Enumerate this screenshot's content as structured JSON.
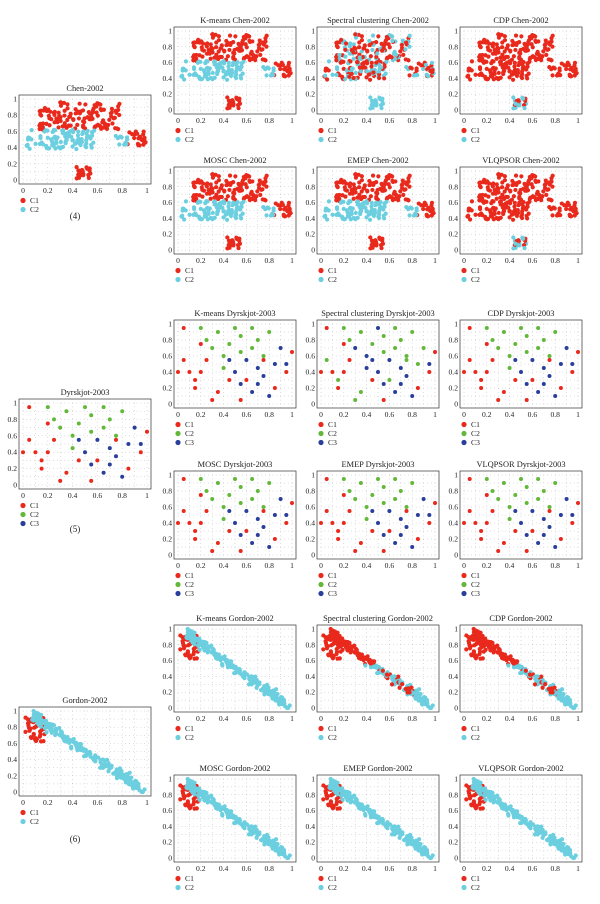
{
  "colors": {
    "C1": "#e8291c",
    "C2": "#6ccfe0",
    "C3": "#2a3f9c",
    "C2_green": "#63b83a"
  },
  "ticks": [
    "0",
    "0.2",
    "0.4",
    "0.6",
    "0.8",
    "1"
  ],
  "captions": [
    "(4)",
    "(5)",
    "(6)"
  ],
  "chart_data": [
    {
      "id": "chen-orig",
      "type": "scatter",
      "title": "Chen-2002",
      "dataset": "chen",
      "mode": "truth",
      "legend": [
        "C1",
        "C2"
      ],
      "xlim": [
        0,
        1
      ],
      "ylim": [
        0,
        1
      ]
    },
    {
      "id": "chen-kmeans",
      "type": "scatter",
      "title": "K-means Chen-2002",
      "dataset": "chen",
      "mode": "truth",
      "legend": [
        "C1",
        "C2"
      ],
      "xlim": [
        0,
        1
      ],
      "ylim": [
        0,
        1
      ]
    },
    {
      "id": "chen-spectral",
      "type": "scatter",
      "title": "Spectral clustering Chen-2002",
      "dataset": "chen",
      "mode": "mixed",
      "legend": [
        "C1",
        "C2"
      ],
      "xlim": [
        0,
        1
      ],
      "ylim": [
        0,
        1
      ]
    },
    {
      "id": "chen-cdp",
      "type": "scatter",
      "title": "CDP Chen-2002",
      "dataset": "chen",
      "mode": "allc1",
      "legend": [
        "C1",
        "C2"
      ],
      "xlim": [
        0,
        1
      ],
      "ylim": [
        0,
        1
      ]
    },
    {
      "id": "chen-mosc",
      "type": "scatter",
      "title": "MOSC Chen-2002",
      "dataset": "chen",
      "mode": "truth",
      "legend": [
        "C1",
        "C2"
      ],
      "xlim": [
        0,
        1
      ],
      "ylim": [
        0,
        1
      ]
    },
    {
      "id": "chen-emep",
      "type": "scatter",
      "title": "EMEP Chen-2002",
      "dataset": "chen",
      "mode": "truth",
      "legend": [
        "C1",
        "C2"
      ],
      "xlim": [
        0,
        1
      ],
      "ylim": [
        0,
        1
      ]
    },
    {
      "id": "chen-vlqpsor",
      "type": "scatter",
      "title": "VLQPSOR Chen-2002",
      "dataset": "chen",
      "mode": "allc1",
      "legend": [
        "C1",
        "C2"
      ],
      "xlim": [
        0,
        1
      ],
      "ylim": [
        0,
        1
      ]
    },
    {
      "id": "dyr-orig",
      "type": "scatter",
      "title": "Dyrskjot-2003",
      "dataset": "dyr",
      "mode": "truth",
      "legend": [
        "C1",
        "C2",
        "C3"
      ],
      "xlim": [
        0,
        1
      ],
      "ylim": [
        0,
        1
      ]
    },
    {
      "id": "dyr-kmeans",
      "type": "scatter",
      "title": "K-means Dyrskjot-2003",
      "dataset": "dyr",
      "mode": "truth",
      "legend": [
        "C1",
        "C2",
        "C3"
      ],
      "xlim": [
        0,
        1
      ],
      "ylim": [
        0,
        1
      ]
    },
    {
      "id": "dyr-spectral",
      "type": "scatter",
      "title": "Spectral clustering Dyrskjot-2003",
      "dataset": "dyr",
      "mode": "mixed",
      "legend": [
        "C1",
        "C2",
        "C3"
      ],
      "xlim": [
        0,
        1
      ],
      "ylim": [
        0,
        1
      ]
    },
    {
      "id": "dyr-cdp",
      "type": "scatter",
      "title": "CDP Dyrskjot-2003",
      "dataset": "dyr",
      "mode": "truth",
      "legend": [
        "C1",
        "C2",
        "C3"
      ],
      "xlim": [
        0,
        1
      ],
      "ylim": [
        0,
        1
      ]
    },
    {
      "id": "dyr-mosc",
      "type": "scatter",
      "title": "MOSC Dyrskjot-2003",
      "dataset": "dyr",
      "mode": "truth",
      "legend": [
        "C1",
        "C2",
        "C3"
      ],
      "xlim": [
        0,
        1
      ],
      "ylim": [
        0,
        1
      ]
    },
    {
      "id": "dyr-emep",
      "type": "scatter",
      "title": "EMEP Dyrskjot-2003",
      "dataset": "dyr",
      "mode": "truth",
      "legend": [
        "C1",
        "C2",
        "C3"
      ],
      "xlim": [
        0,
        1
      ],
      "ylim": [
        0,
        1
      ]
    },
    {
      "id": "dyr-vlqpsor",
      "type": "scatter",
      "title": "VLQPSOR Dyrskjot-2003",
      "dataset": "dyr",
      "mode": "truth",
      "legend": [
        "C1",
        "C2",
        "C3"
      ],
      "xlim": [
        0,
        1
      ],
      "ylim": [
        0,
        1
      ]
    },
    {
      "id": "gor-orig",
      "type": "scatter",
      "title": "Gordon-2002",
      "dataset": "gor",
      "mode": "truth",
      "legend": [
        "C1",
        "C2"
      ],
      "xlim": [
        0,
        1
      ],
      "ylim": [
        0,
        1
      ]
    },
    {
      "id": "gor-kmeans",
      "type": "scatter",
      "title": "K-means Gordon-2002",
      "dataset": "gor",
      "mode": "truth",
      "legend": [
        "C1",
        "C2"
      ],
      "xlim": [
        0,
        1
      ],
      "ylim": [
        0,
        1
      ]
    },
    {
      "id": "gor-spectral",
      "type": "scatter",
      "title": "Spectral clustering Gordon-2002",
      "dataset": "gor",
      "mode": "mixed",
      "legend": [
        "C1",
        "C2"
      ],
      "xlim": [
        0,
        1
      ],
      "ylim": [
        0,
        1
      ]
    },
    {
      "id": "gor-cdp",
      "type": "scatter",
      "title": "CDP Gordon-2002",
      "dataset": "gor",
      "mode": "mixed",
      "legend": [
        "C1",
        "C2"
      ],
      "xlim": [
        0,
        1
      ],
      "ylim": [
        0,
        1
      ]
    },
    {
      "id": "gor-mosc",
      "type": "scatter",
      "title": "MOSC Gordon-2002",
      "dataset": "gor",
      "mode": "truth",
      "legend": [
        "C1",
        "C2"
      ],
      "xlim": [
        0,
        1
      ],
      "ylim": [
        0,
        1
      ]
    },
    {
      "id": "gor-emep",
      "type": "scatter",
      "title": "EMEP Gordon-2002",
      "dataset": "gor",
      "mode": "truth",
      "legend": [
        "C1",
        "C2"
      ],
      "xlim": [
        0,
        1
      ],
      "ylim": [
        0,
        1
      ]
    },
    {
      "id": "gor-vlqpsor",
      "type": "scatter",
      "title": "VLQPSOR Gordon-2002",
      "dataset": "gor",
      "mode": "truth",
      "legend": [
        "C1",
        "C2"
      ],
      "xlim": [
        0,
        1
      ],
      "ylim": [
        0,
        1
      ]
    }
  ]
}
